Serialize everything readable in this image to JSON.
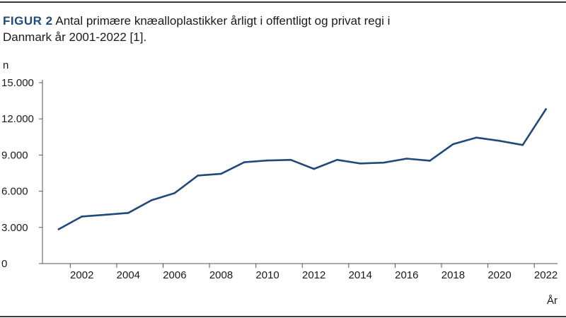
{
  "figure": {
    "label": "FIGUR 2",
    "title": "Antal primære knæalloplastikker årligt i offentligt og privat regi i Danmark år 2001-2022 [1]."
  },
  "colors": {
    "accent": "#1f4a7a",
    "rule": "#3a3a3a",
    "axis": "#555555",
    "line": "#1f4a7a"
  },
  "chart_data": {
    "type": "line",
    "title": "Antal primære knæalloplastikker årligt i offentligt og privat regi i Danmark år 2001-2022 [1].",
    "ylabel": "n",
    "xlabel": "År",
    "ylim": [
      0,
      15000
    ],
    "xlim": [
      2001,
      2022
    ],
    "yticks": [
      0,
      3000,
      6000,
      9000,
      12000,
      15000
    ],
    "ytick_labels": [
      "0",
      "3.000",
      "6.000",
      "9.000",
      "12.000",
      "15.000"
    ],
    "xticks": [
      2002,
      2004,
      2006,
      2008,
      2010,
      2012,
      2014,
      2016,
      2018,
      2020,
      2022
    ],
    "xtick_labels": [
      "2002",
      "2004",
      "2006",
      "2008",
      "2010",
      "2012",
      "2014",
      "2016",
      "2018",
      "2020",
      "2022"
    ],
    "grid": false,
    "legend": "none",
    "series": [
      {
        "x": [
          2001,
          2002,
          2003,
          2004,
          2005,
          2006,
          2007,
          2008,
          2009,
          2010,
          2011,
          2012,
          2013,
          2014,
          2015,
          2016,
          2017,
          2018,
          2019,
          2020,
          2021,
          2022
        ],
        "values": [
          2850,
          3900,
          4050,
          4200,
          5250,
          5850,
          7300,
          7450,
          8400,
          8550,
          8600,
          7850,
          8600,
          8300,
          8370,
          8700,
          8530,
          9900,
          10450,
          10180,
          9830,
          12800
        ]
      }
    ]
  }
}
